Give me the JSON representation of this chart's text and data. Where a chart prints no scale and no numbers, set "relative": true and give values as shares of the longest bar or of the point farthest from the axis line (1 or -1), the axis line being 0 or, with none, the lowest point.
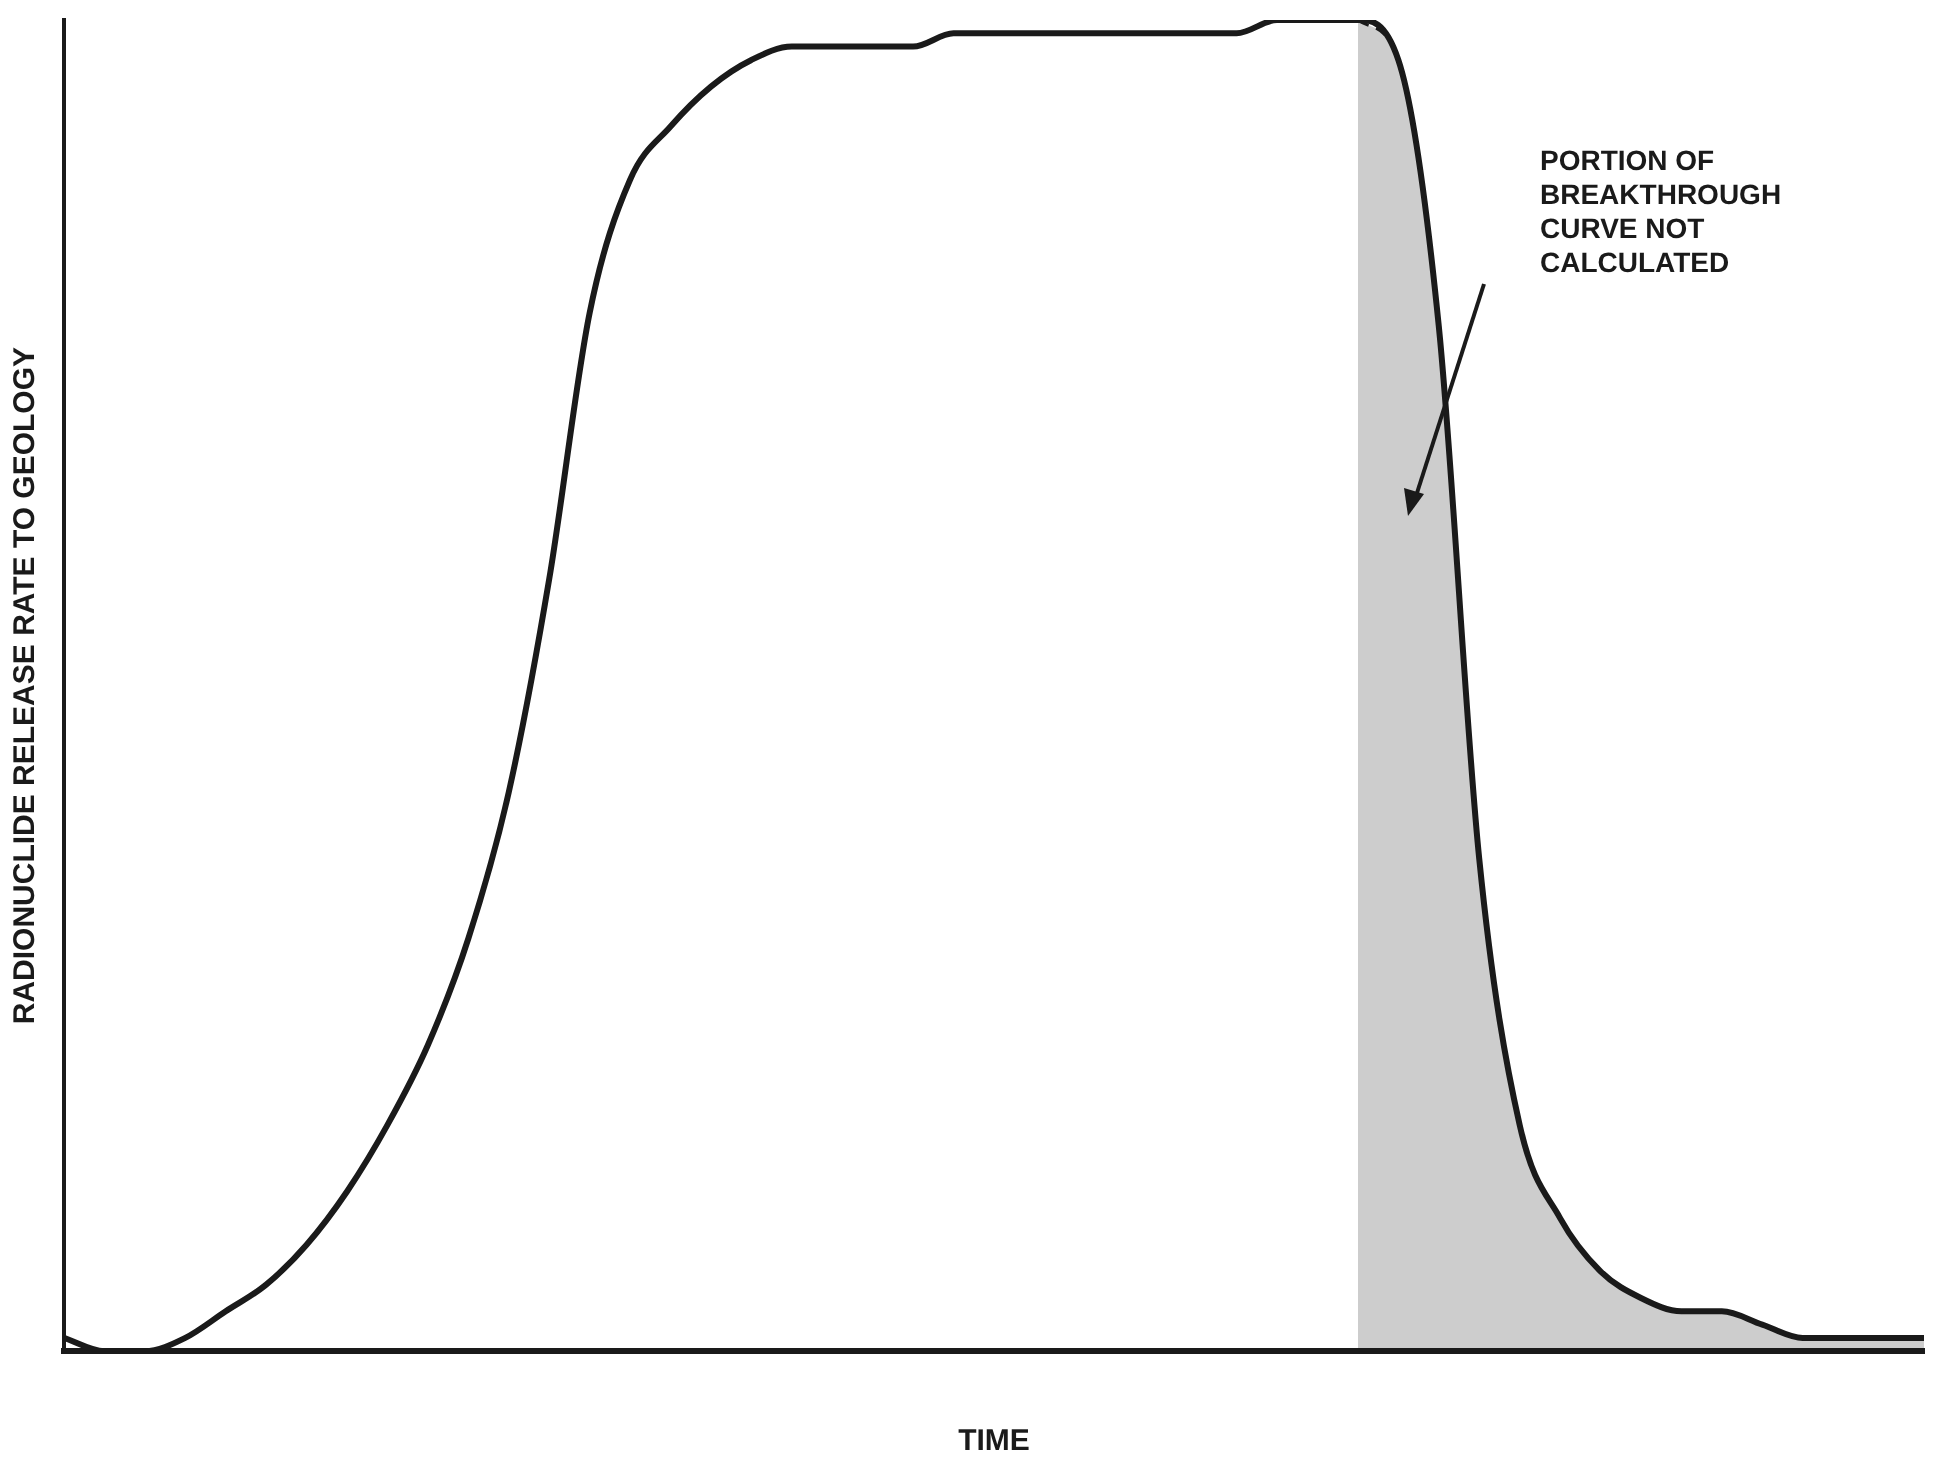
{
  "chart_data": {
    "type": "line",
    "relative": true,
    "xlabel": "TIME",
    "ylabel": "RADIONUCLIDE RELEASE RATE TO GEOLOGY",
    "categories": [
      null,
      null,
      null,
      null,
      null,
      null,
      null,
      null,
      null,
      null,
      null,
      null,
      null,
      null,
      null,
      null,
      null,
      null,
      null,
      null,
      null,
      null,
      null,
      null,
      null,
      null,
      null,
      null,
      null,
      null,
      null,
      null,
      null,
      null,
      null,
      null,
      null,
      null,
      null,
      null,
      null,
      null,
      null,
      null,
      null,
      null,
      null
    ],
    "series": [
      {
        "color": "#1a1a1a",
        "values": [
          0.01,
          0,
          0,
          0.01,
          0.03,
          0.05,
          0.08,
          0.12,
          0.17,
          0.23,
          0.31,
          0.42,
          0.58,
          0.78,
          0.88,
          0.92,
          0.95,
          0.97,
          0.98,
          0.98,
          0.98,
          0.98,
          0.99,
          0.99,
          0.99,
          0.99,
          0.99,
          0.99,
          0.99,
          0.99,
          1,
          1,
          1,
          0.97,
          0.77,
          0.37,
          0.17,
          0.1,
          0.06,
          0.04,
          0.03,
          0.03,
          0.02,
          0.01,
          0.01,
          0.01,
          0.01
        ]
      },
      {
        "type": "area",
        "color": "#1a1a1a",
        "values": [
          null,
          null,
          null,
          null,
          null,
          null,
          null,
          null,
          null,
          null,
          null,
          null,
          null,
          null,
          null,
          null,
          null,
          null,
          null,
          null,
          null,
          null,
          null,
          null,
          null,
          null,
          null,
          null,
          null,
          null,
          null,
          null,
          1,
          0.97,
          0.77,
          0.37,
          0.17,
          0.1,
          0.06,
          0.04,
          0.03,
          0.03,
          0.02,
          0.01,
          0.01,
          0.01,
          0.01
        ]
      }
    ],
    "annotations": [
      "PORTION OF\nBREAKTHROUGH\nCURVE NOT\nCALCULATED"
    ],
    "legend": false,
    "grid": false,
    "marker": "none"
  }
}
